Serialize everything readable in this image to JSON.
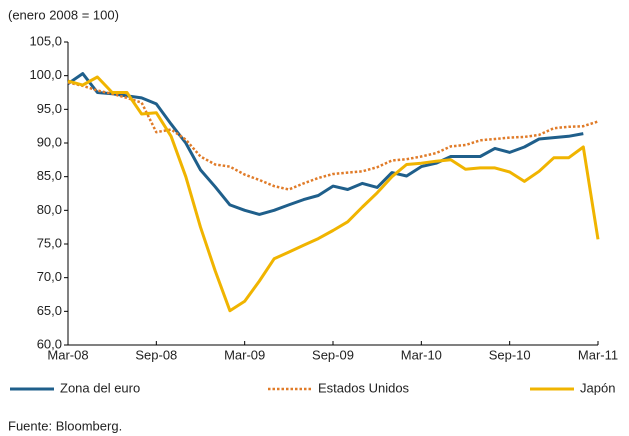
{
  "chart_data": {
    "type": "line",
    "subtitle": "(enero 2008 = 100)",
    "source": "Fuente: Bloomberg.",
    "categories": [
      "Mar-08",
      null,
      null,
      null,
      null,
      null,
      "Sep-08",
      null,
      null,
      null,
      null,
      null,
      "Mar-09",
      null,
      null,
      null,
      null,
      null,
      "Sep-09",
      null,
      null,
      null,
      null,
      null,
      "Mar-10",
      null,
      null,
      null,
      null,
      null,
      "Sep-10",
      null,
      null,
      null,
      null,
      null,
      "Mar-11"
    ],
    "ylim": [
      60,
      105
    ],
    "yticks": [
      {
        "value": 60,
        "label": "60,0"
      },
      {
        "value": 65,
        "label": "65,0"
      },
      {
        "value": 70,
        "label": "70,0"
      },
      {
        "value": 75,
        "label": "75,0"
      },
      {
        "value": 80,
        "label": "80,0"
      },
      {
        "value": 85,
        "label": "85,0"
      },
      {
        "value": 90,
        "label": "90,0"
      },
      {
        "value": 95,
        "label": "95,0"
      },
      {
        "value": 100,
        "label": "100,0"
      },
      {
        "value": 105,
        "label": "105,0"
      }
    ],
    "grid": false,
    "legend": "bottom",
    "series": [
      {
        "name": "Zona del euro",
        "color": "#1f5f8b",
        "line_style": "solid",
        "values": [
          98.8,
          100.3,
          97.5,
          97.3,
          97.0,
          96.7,
          95.8,
          92.8,
          90.0,
          86.0,
          83.5,
          80.8,
          80.0,
          79.4,
          80.0,
          80.8,
          81.6,
          82.2,
          83.6,
          83.1,
          84.0,
          83.4,
          85.6,
          85.1,
          86.5,
          87.0,
          88.0,
          88.0,
          88.0,
          89.2,
          88.6,
          89.4,
          90.6,
          90.8,
          91.0,
          91.4,
          null
        ]
      },
      {
        "name": "Estados Unidos",
        "color": "#e07b28",
        "line_style": "dotted",
        "values": [
          99.0,
          98.5,
          97.8,
          97.3,
          96.7,
          96.0,
          91.6,
          92.0,
          90.5,
          88.0,
          86.8,
          86.5,
          85.3,
          84.5,
          83.6,
          83.1,
          84.0,
          84.8,
          85.4,
          85.6,
          85.8,
          86.4,
          87.4,
          87.6,
          88.0,
          88.5,
          89.5,
          89.7,
          90.4,
          90.6,
          90.8,
          90.9,
          91.2,
          92.2,
          92.4,
          92.5,
          93.2
        ]
      },
      {
        "name": "Japón",
        "color": "#f0b400",
        "line_style": "solid",
        "values": [
          99.2,
          98.6,
          99.8,
          97.5,
          97.5,
          94.3,
          94.5,
          91.0,
          85.0,
          77.5,
          71.0,
          65.1,
          66.5,
          69.5,
          72.8,
          73.8,
          74.8,
          75.8,
          77.0,
          78.3,
          80.5,
          82.6,
          85.0,
          86.8,
          87.0,
          87.3,
          87.5,
          86.1,
          86.3,
          86.3,
          85.7,
          84.3,
          85.8,
          87.8,
          87.8,
          89.4,
          75.7
        ]
      }
    ]
  }
}
